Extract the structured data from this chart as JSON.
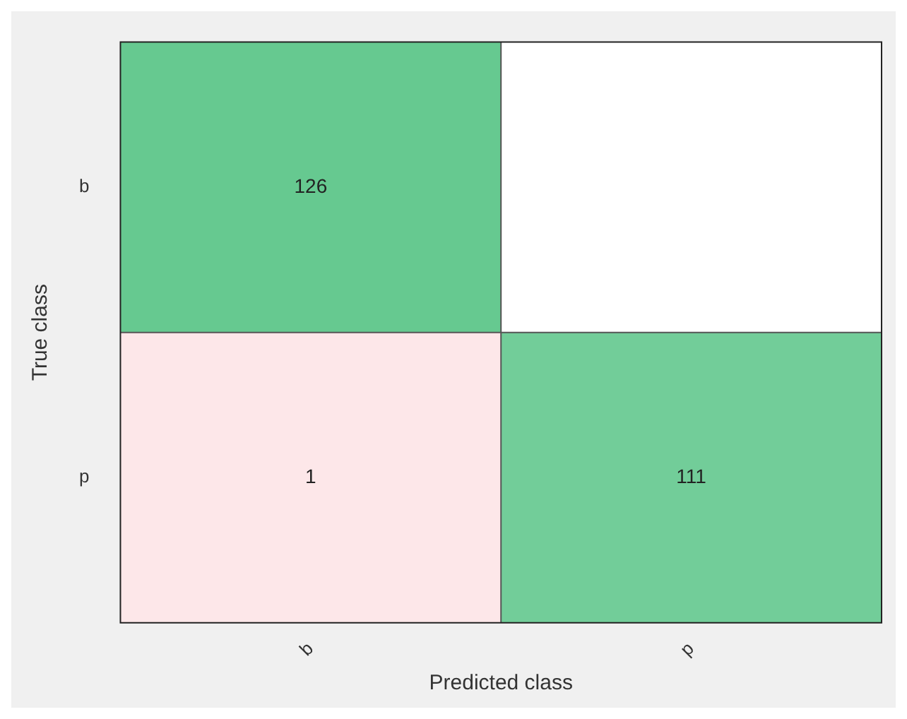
{
  "chart_data": {
    "type": "heatmap",
    "data_labels": true,
    "xlabel": "Predicted class",
    "ylabel": "True class",
    "categories": [
      "b",
      "p"
    ],
    "y_categories": [
      "b",
      "p"
    ],
    "cells": [
      [
        126,
        null
      ],
      [
        1,
        111
      ]
    ]
  }
}
